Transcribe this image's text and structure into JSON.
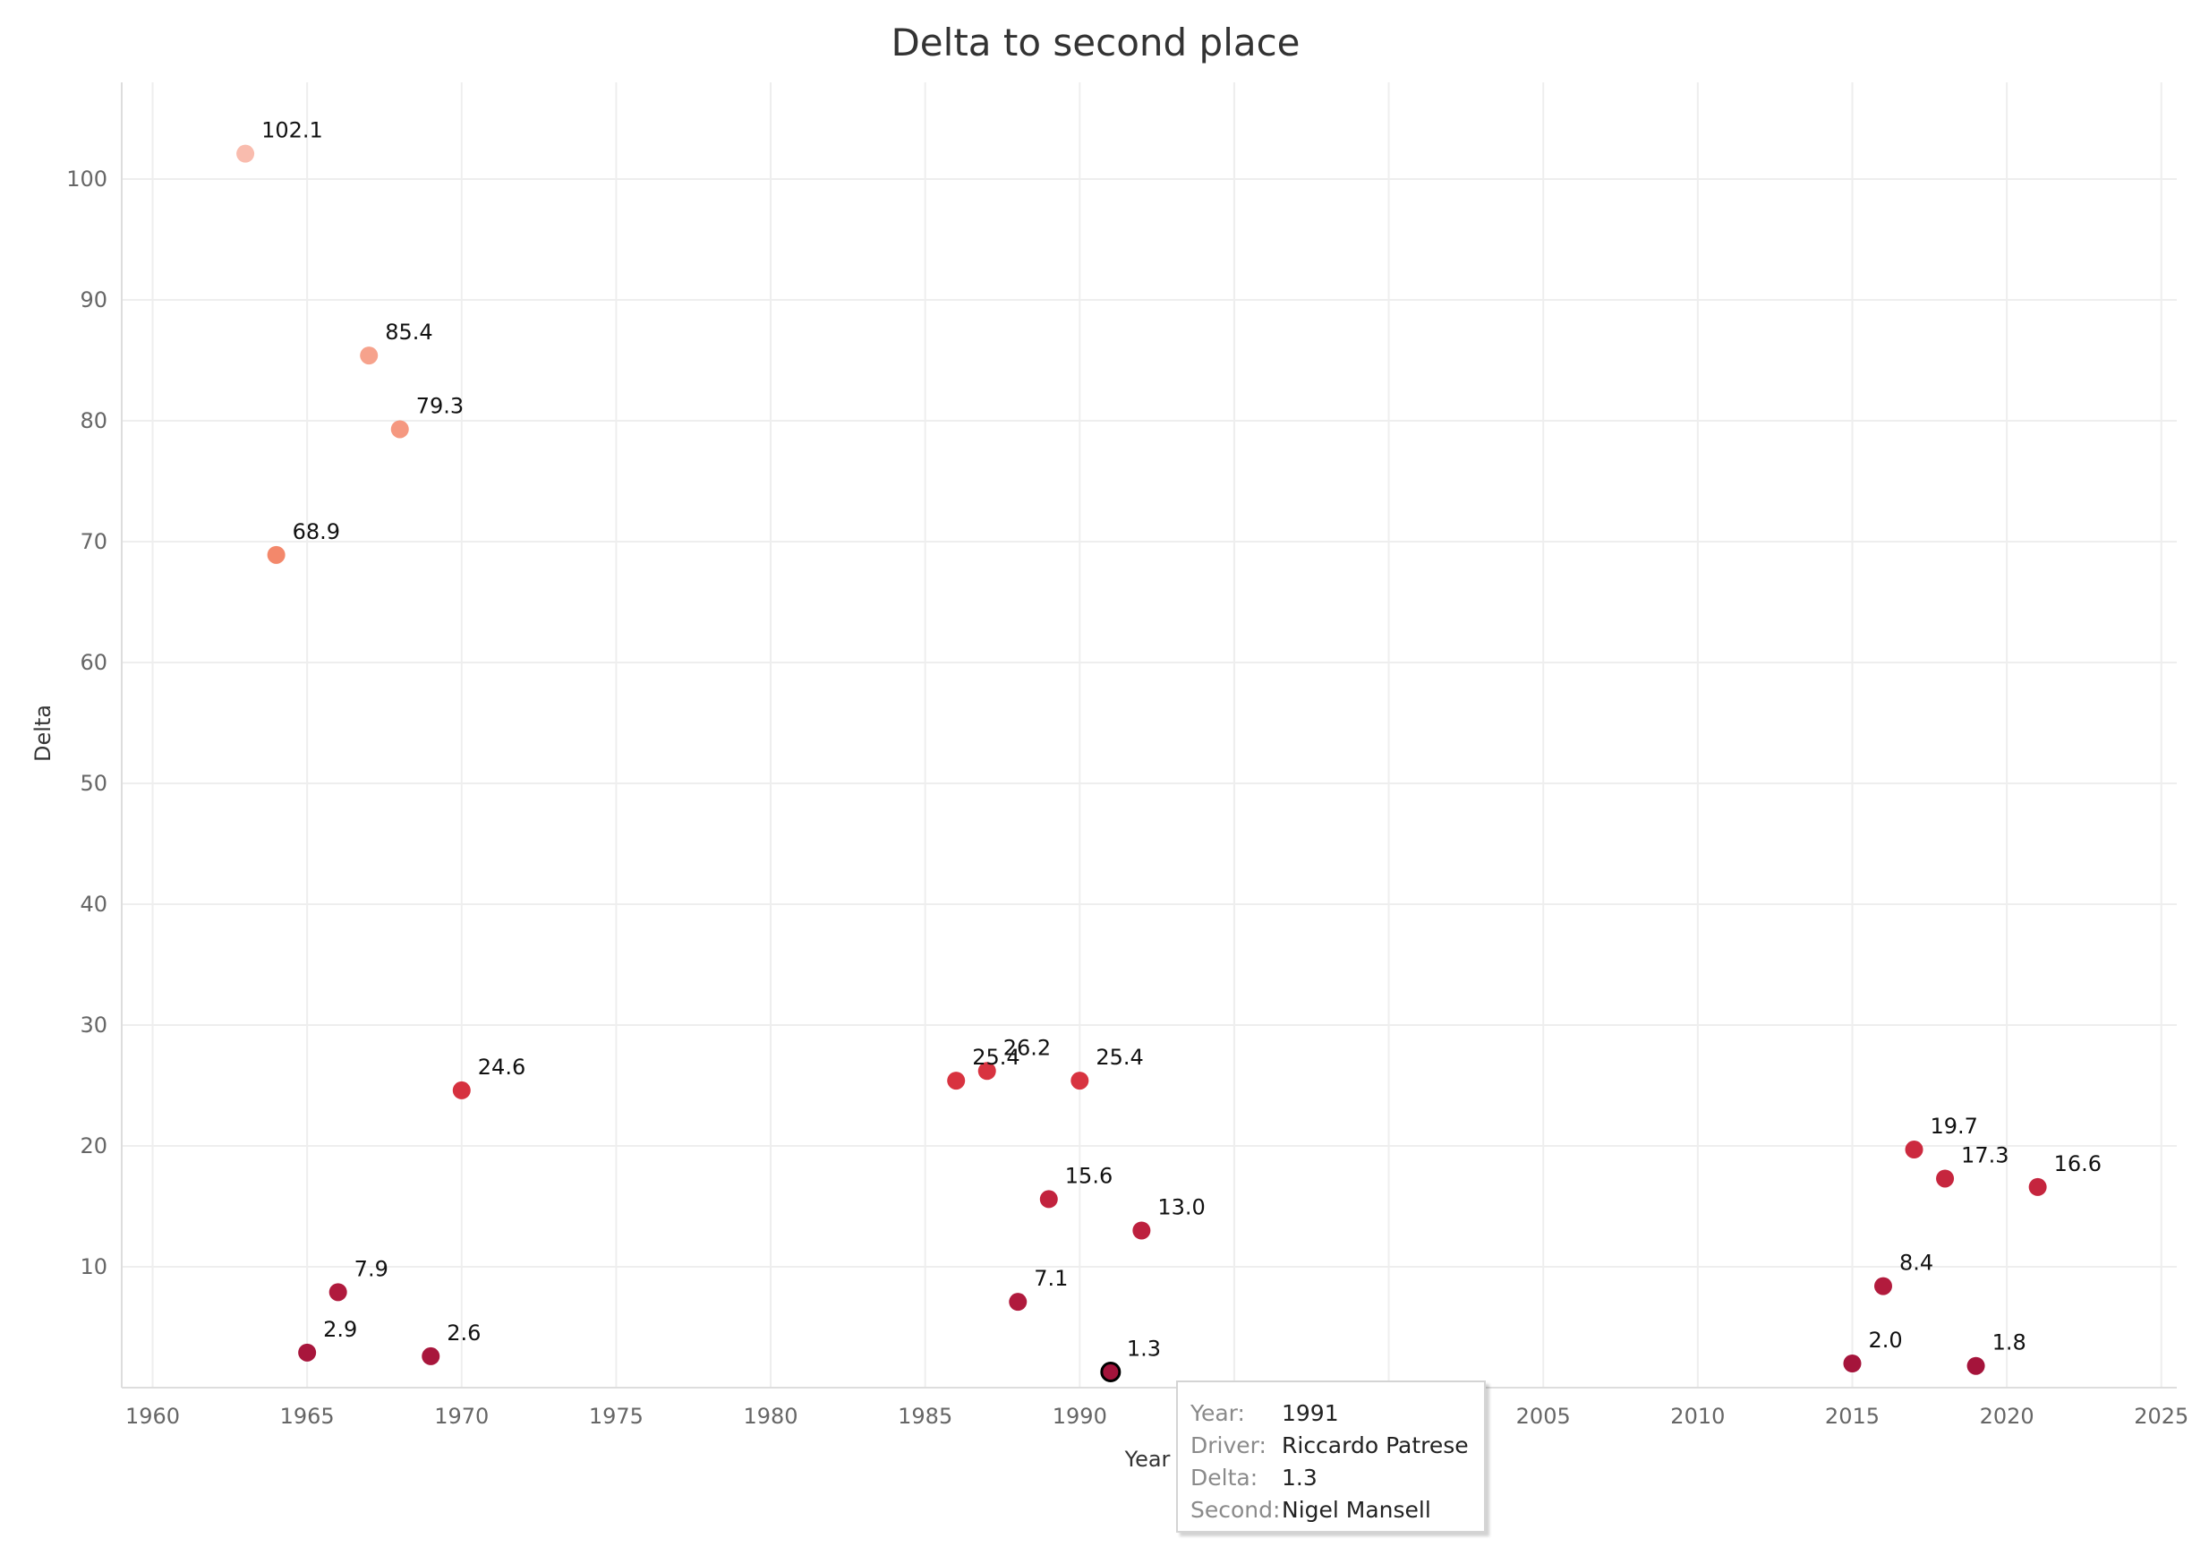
{
  "chart_data": {
    "type": "scatter",
    "title": "Delta to second place",
    "xlabel": "Year",
    "ylabel": "Delta",
    "xlim": [
      1959,
      2025.5
    ],
    "ylim": [
      0,
      108
    ],
    "x_ticks": [
      1960,
      1965,
      1970,
      1975,
      1980,
      1985,
      1990,
      1995,
      2000,
      2005,
      2010,
      2015,
      2020,
      2025
    ],
    "y_ticks": [
      10,
      20,
      30,
      40,
      50,
      60,
      70,
      80,
      90,
      100
    ],
    "grid": true,
    "color_scale": "sequential delta: light salmon for large values to dark crimson for small values",
    "points": [
      {
        "x": 1963,
        "y": 102.1,
        "label": "102.1",
        "color": "#f9bcae"
      },
      {
        "x": 1964,
        "y": 68.9,
        "label": "68.9",
        "color": "#f3886b"
      },
      {
        "x": 1965,
        "y": 2.9,
        "label": "2.9",
        "color": "#a8163c"
      },
      {
        "x": 1966,
        "y": 7.9,
        "label": "7.9",
        "color": "#b01a3d"
      },
      {
        "x": 1967,
        "y": 85.4,
        "label": "85.4",
        "color": "#f6a28c"
      },
      {
        "x": 1968,
        "y": 79.3,
        "label": "79.3",
        "color": "#f59880"
      },
      {
        "x": 1969,
        "y": 2.6,
        "label": "2.6",
        "color": "#a8163c"
      },
      {
        "x": 1970,
        "y": 24.6,
        "label": "24.6",
        "color": "#d6313f"
      },
      {
        "x": 1986,
        "y": 25.4,
        "label": "25.4",
        "color": "#d83340"
      },
      {
        "x": 1987,
        "y": 26.2,
        "label": "26.2",
        "color": "#d83340"
      },
      {
        "x": 1988,
        "y": 7.1,
        "label": "7.1",
        "color": "#b01a3d"
      },
      {
        "x": 1989,
        "y": 15.6,
        "label": "15.6",
        "color": "#c2233e"
      },
      {
        "x": 1990,
        "y": 25.4,
        "label": "25.4",
        "color": "#d83340"
      },
      {
        "x": 1991,
        "y": 1.3,
        "label": "1.3",
        "color": "#a3133b",
        "selected": true
      },
      {
        "x": 1992,
        "y": 13.0,
        "label": "13.0",
        "color": "#bd203e"
      },
      {
        "x": 2015,
        "y": 2.0,
        "label": "2.0",
        "color": "#a5143b"
      },
      {
        "x": 2016,
        "y": 8.4,
        "label": "8.4",
        "color": "#b21b3d"
      },
      {
        "x": 2017,
        "y": 19.7,
        "label": "19.7",
        "color": "#cc2a3f"
      },
      {
        "x": 2018,
        "y": 17.3,
        "label": "17.3",
        "color": "#c6263e"
      },
      {
        "x": 2019,
        "y": 1.8,
        "label": "1.8",
        "color": "#a5143b"
      },
      {
        "x": 2021,
        "y": 16.6,
        "label": "16.6",
        "color": "#c5253e"
      }
    ]
  },
  "tooltip": {
    "rows": [
      {
        "key": "Year:",
        "value": "1991"
      },
      {
        "key": "Driver:",
        "value": "Riccardo Patrese"
      },
      {
        "key": "Delta:",
        "value": "1.3"
      },
      {
        "key": "Second:",
        "value": "Nigel Mansell"
      }
    ]
  },
  "colors": {
    "grid": "#eeeeee",
    "axis_line": "#dddddd",
    "tick_text": "#666666",
    "title_text": "#333333",
    "label_text": "#111111",
    "selected_stroke": "#000000"
  }
}
